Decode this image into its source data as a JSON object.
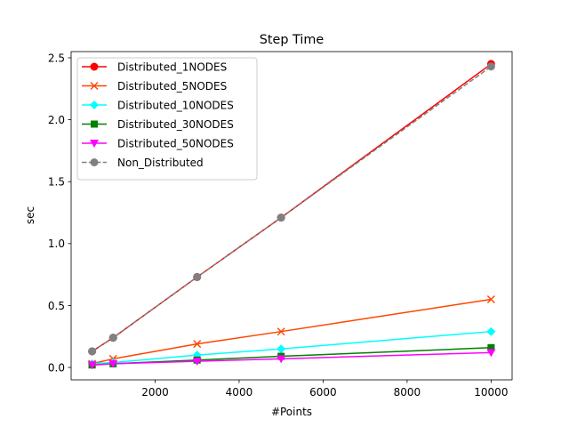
{
  "chart_data": {
    "type": "line",
    "title": "Step Time",
    "xlabel": "#Points",
    "ylabel": "sec",
    "x": [
      500,
      1000,
      3000,
      5000,
      10000
    ],
    "xlim": [
      0,
      10500
    ],
    "ylim": [
      -0.1,
      2.55
    ],
    "xticks": [
      2000,
      4000,
      6000,
      8000,
      10000
    ],
    "yticks": [
      0.0,
      0.5,
      1.0,
      1.5,
      2.0,
      2.5
    ],
    "xtick_labels": [
      "2000",
      "4000",
      "6000",
      "8000",
      "10000"
    ],
    "ytick_labels": [
      "0.0",
      "0.5",
      "1.0",
      "1.5",
      "2.0",
      "2.5"
    ],
    "grid": false,
    "legend_position": "upper-left",
    "series": [
      {
        "name": "Distributed_1NODES",
        "color": "#ff0000",
        "marker": "circle",
        "dashed": false,
        "values": [
          0.13,
          0.24,
          0.73,
          1.21,
          2.45
        ]
      },
      {
        "name": "Distributed_5NODES",
        "color": "#ff4500",
        "marker": "x",
        "dashed": false,
        "values": [
          0.03,
          0.07,
          0.19,
          0.29,
          0.55
        ]
      },
      {
        "name": "Distributed_10NODES",
        "color": "#00ffff",
        "marker": "diamond",
        "dashed": false,
        "values": [
          0.03,
          0.04,
          0.1,
          0.15,
          0.29
        ]
      },
      {
        "name": "Distributed_30NODES",
        "color": "#008000",
        "marker": "square",
        "dashed": false,
        "values": [
          0.02,
          0.03,
          0.06,
          0.09,
          0.16
        ]
      },
      {
        "name": "Distributed_50NODES",
        "color": "#ff00ff",
        "marker": "triangle-down",
        "dashed": false,
        "values": [
          0.02,
          0.03,
          0.05,
          0.07,
          0.12
        ]
      },
      {
        "name": "Non_Distributed",
        "color": "#808080",
        "marker": "circle",
        "dashed": true,
        "values": [
          0.13,
          0.24,
          0.73,
          1.21,
          2.43
        ]
      }
    ]
  }
}
